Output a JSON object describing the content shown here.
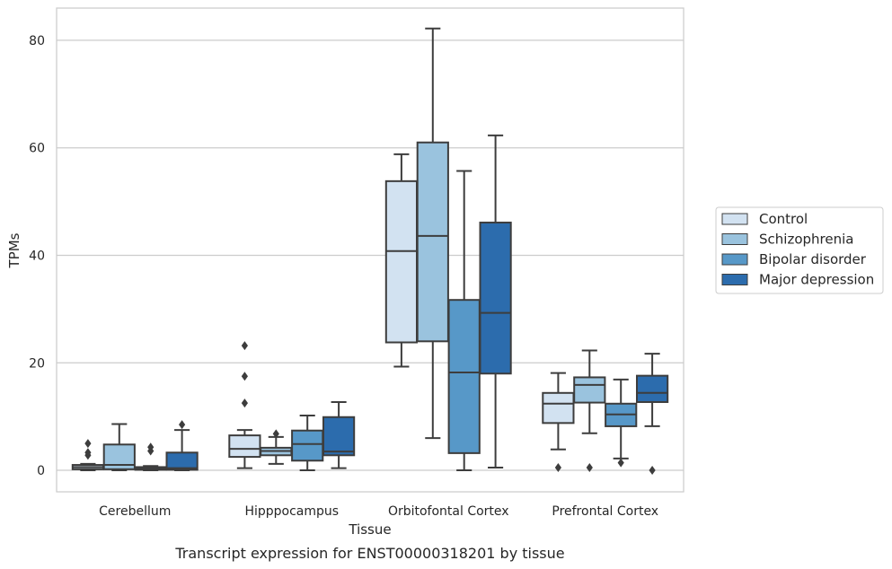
{
  "chart_data": {
    "type": "box",
    "caption": "Transcript expression for ENST00000318201 by tissue",
    "xlabel": "Tissue",
    "ylabel": "TPMs",
    "ylim": [
      -4,
      86
    ],
    "yticks": [
      0,
      20,
      40,
      60,
      80
    ],
    "grid": true,
    "legend_position": "right",
    "categories": [
      "Cerebellum",
      "Hipppocampus",
      "Orbitofontal Cortex",
      "Prefrontal Cortex"
    ],
    "series": [
      {
        "name": "Control",
        "color": "#d2e2f1",
        "boxes": [
          {
            "whislo": 0,
            "q1": 0.2,
            "med": 0.6,
            "q3": 1.0,
            "whishi": 1.2,
            "fliers": [
              2.8,
              3.3,
              5.0
            ]
          },
          {
            "whislo": 0.4,
            "q1": 2.5,
            "med": 4.0,
            "q3": 6.5,
            "whishi": 7.5,
            "fliers": [
              12.5,
              17.5,
              23.2
            ]
          },
          {
            "whislo": 19.3,
            "q1": 23.8,
            "med": 40.8,
            "q3": 53.8,
            "whishi": 58.8,
            "fliers": []
          },
          {
            "whislo": 3.9,
            "q1": 8.8,
            "med": 12.4,
            "q3": 14.4,
            "whishi": 18.1,
            "fliers": [
              0.5
            ]
          }
        ]
      },
      {
        "name": "Schizophrenia",
        "color": "#9ac3de",
        "boxes": [
          {
            "whislo": 0,
            "q1": 0.2,
            "med": 1.0,
            "q3": 4.8,
            "whishi": 8.6,
            "fliers": []
          },
          {
            "whislo": 1.2,
            "q1": 2.8,
            "med": 3.6,
            "q3": 4.2,
            "whishi": 6.2,
            "fliers": [
              6.8
            ]
          },
          {
            "whislo": 6.0,
            "q1": 24.0,
            "med": 43.6,
            "q3": 61.0,
            "whishi": 82.2,
            "fliers": []
          },
          {
            "whislo": 6.9,
            "q1": 12.6,
            "med": 15.9,
            "q3": 17.3,
            "whishi": 22.3,
            "fliers": [
              0.5
            ]
          }
        ]
      },
      {
        "name": "Bipolar disorder",
        "color": "#5798c8",
        "boxes": [
          {
            "whislo": 0,
            "q1": 0.1,
            "med": 0.3,
            "q3": 0.6,
            "whishi": 0.8,
            "fliers": [
              3.6,
              4.3
            ]
          },
          {
            "whislo": 0,
            "q1": 1.8,
            "med": 4.9,
            "q3": 7.4,
            "whishi": 10.2,
            "fliers": []
          },
          {
            "whislo": 0,
            "q1": 3.2,
            "med": 18.2,
            "q3": 31.7,
            "whishi": 55.7,
            "fliers": []
          },
          {
            "whislo": 2.2,
            "q1": 8.2,
            "med": 10.4,
            "q3": 12.4,
            "whishi": 16.9,
            "fliers": [
              1.4
            ]
          }
        ]
      },
      {
        "name": "Major depression",
        "color": "#2c6cad",
        "boxes": [
          {
            "whislo": 0,
            "q1": 0.1,
            "med": 0.4,
            "q3": 3.3,
            "whishi": 7.5,
            "fliers": [
              8.5
            ]
          },
          {
            "whislo": 0.4,
            "q1": 2.8,
            "med": 3.5,
            "q3": 9.9,
            "whishi": 12.7,
            "fliers": []
          },
          {
            "whislo": 0.5,
            "q1": 18.0,
            "med": 29.3,
            "q3": 46.1,
            "whishi": 62.3,
            "fliers": []
          },
          {
            "whislo": 8.2,
            "q1": 12.7,
            "med": 14.4,
            "q3": 17.6,
            "whishi": 21.7,
            "fliers": [
              0
            ]
          }
        ]
      }
    ]
  }
}
